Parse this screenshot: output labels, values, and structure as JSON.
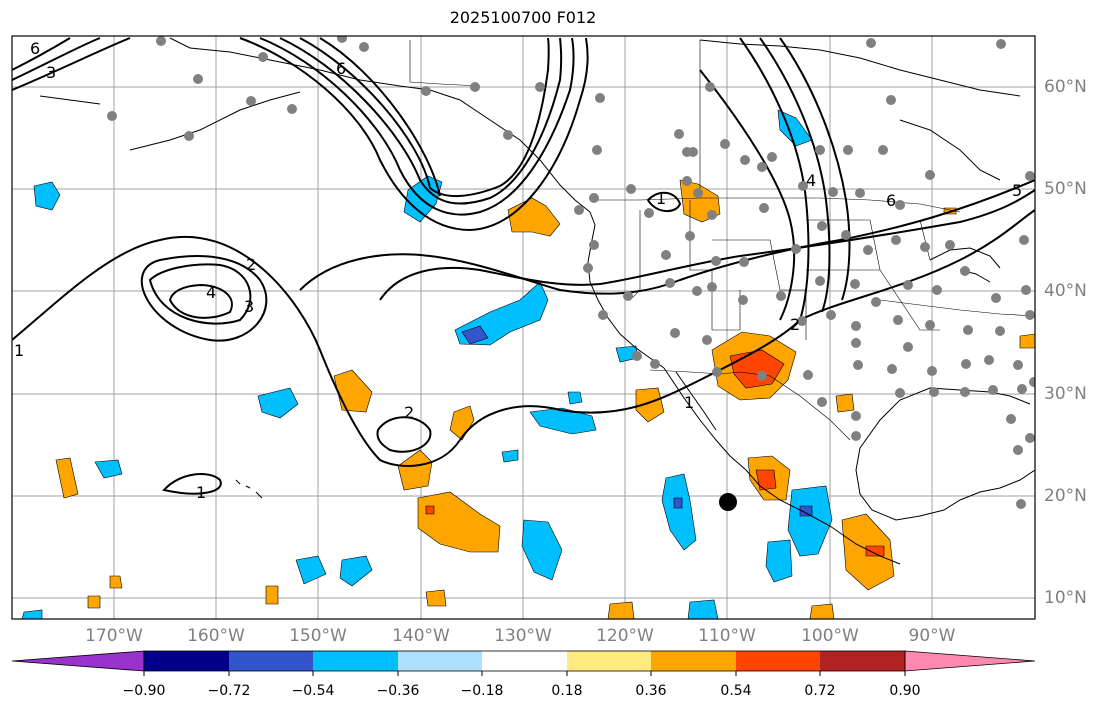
{
  "title": "2025100700 F012",
  "lon_labels": [
    "170°W",
    "160°W",
    "150°W",
    "140°W",
    "130°W",
    "120°W",
    "110°W",
    "100°W",
    "90°W"
  ],
  "lat_labels": [
    "60°N",
    "50°N",
    "40°N",
    "30°N",
    "20°N",
    "10°N"
  ],
  "contour_labels": [
    "6",
    "6",
    "3",
    "1",
    "4",
    "5",
    "6",
    "2",
    "4",
    "3",
    "2",
    "2",
    "1",
    "1",
    "1"
  ],
  "colorbar": {
    "colors": [
      "#9933cc",
      "#00008b",
      "#3355cc",
      "#00bfff",
      "#aee0ff",
      "#ffffff",
      "#ffea80",
      "#ffa500",
      "#ff4500",
      "#b22222",
      "#ff88b0"
    ],
    "labels": [
      "−0.90",
      "−0.72",
      "−0.54",
      "−0.36",
      "−0.18",
      "0.18",
      "0.36",
      "0.54",
      "0.72",
      "0.90"
    ]
  },
  "colors": {
    "grid": "#a0a0a0",
    "coast": "#000000",
    "contour": "#000000",
    "station": "#808080",
    "marker": "#000000"
  }
}
